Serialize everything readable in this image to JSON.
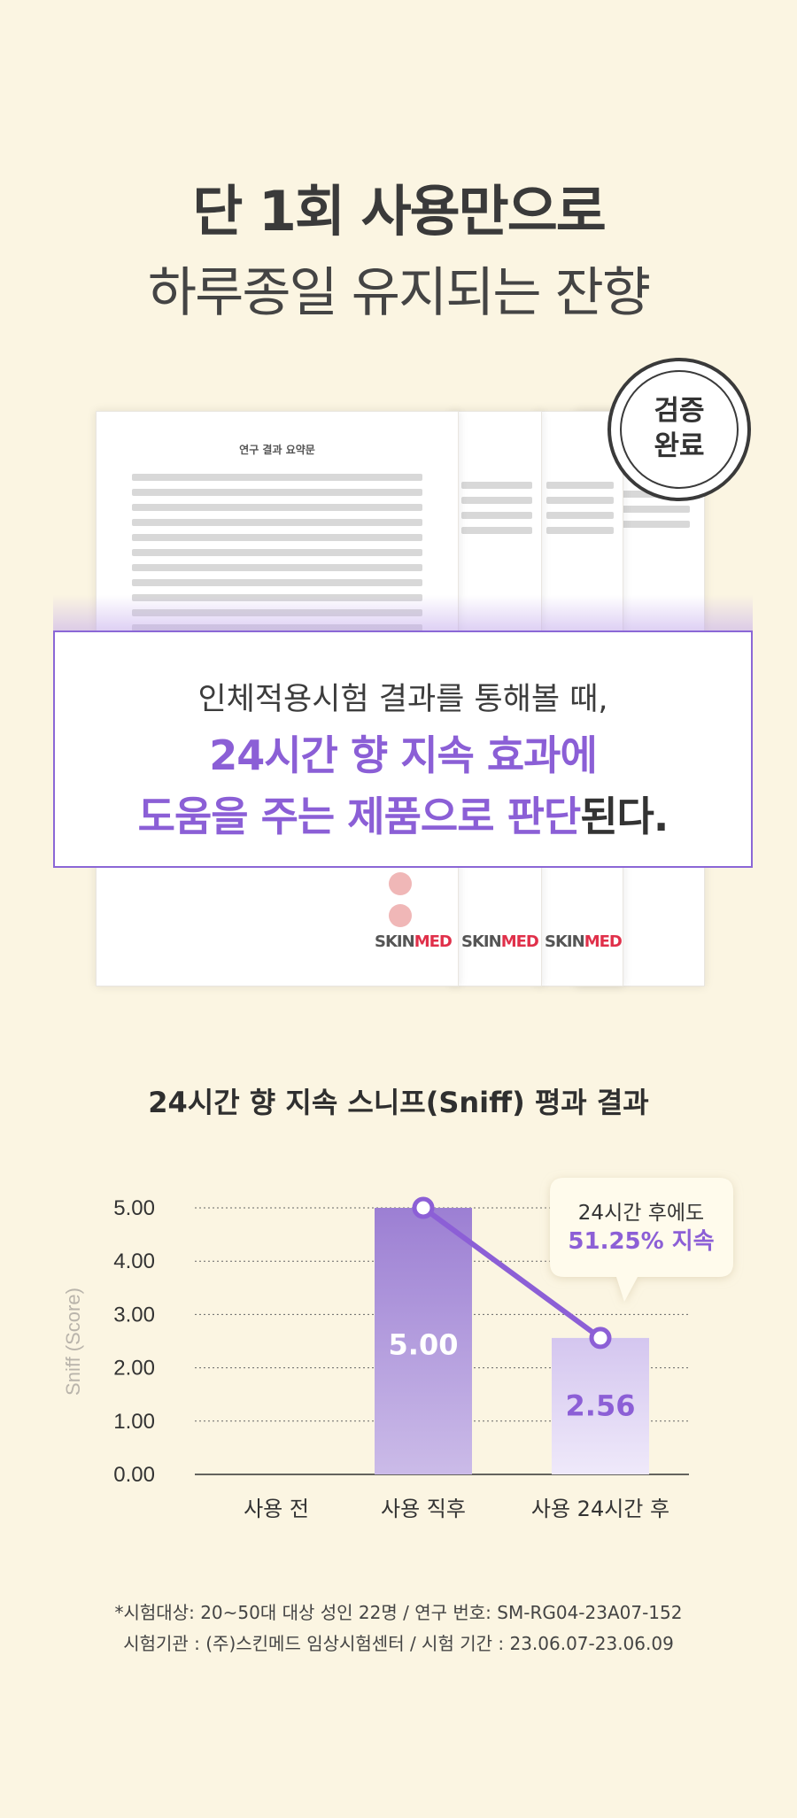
{
  "headline": {
    "line1": "단 1회 사용만으로",
    "line2": "하루종일 유지되는 잔향"
  },
  "badge": {
    "line1": "검증",
    "line2": "완료"
  },
  "document": {
    "title": "연구 결과 요약문",
    "logo_gray": "SKIN",
    "logo_red": "MED"
  },
  "callout": {
    "line1": "인체적용시험 결과를 통해볼 때,",
    "line2": "24시간 향 지속 효과에",
    "line3_purple": "도움을 주는 제품으로 판단",
    "line3_dark": "된다."
  },
  "chart_data": {
    "type": "bar",
    "title": "24시간 향 지속 스니프(Sniff) 평과 결과",
    "ylabel": "Sniff (Score)",
    "ylim": [
      0,
      5
    ],
    "yticks": [
      "0.00",
      "1.00",
      "2.00",
      "3.00",
      "4.00",
      "5.00"
    ],
    "categories": [
      "사용 전",
      "사용 직후",
      "사용 24시간 후"
    ],
    "values": [
      null,
      5.0,
      2.56
    ],
    "data_labels": [
      "",
      "5.00",
      "2.56"
    ],
    "grid": true,
    "annotation": {
      "line1": "24시간 후에도",
      "line2": "51.25% 지속"
    },
    "colors": {
      "bar_dark": "#9c7fd3",
      "bar_light": "#d9ccf1",
      "line": "#8c5fd6"
    }
  },
  "footnote": {
    "line1": "*시험대상: 20~50대 대상 성인 22명 / 연구 번호: SM-RG04-23A07-152",
    "line2": "시험기관 : (주)스킨메드 임상시험센터 / 시험 기간 : 23.06.07-23.06.09"
  }
}
